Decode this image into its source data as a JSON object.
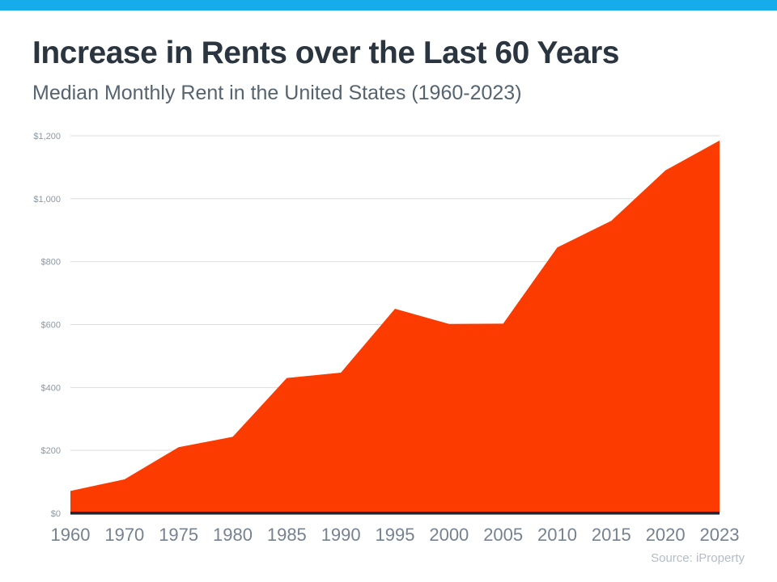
{
  "page": {
    "accent_bar_color": "#16ABEB",
    "background_color": "#FFFFFF"
  },
  "chart_data": {
    "type": "area",
    "title": "Increase in Rents over the Last 60 Years",
    "subtitle": "Median Monthly Rent in the United States (1960-2023)",
    "source": "Source: iProperty",
    "series_name": "Median Monthly Rent (USD)",
    "categories": [
      "1960",
      "1970",
      "1975",
      "1980",
      "1985",
      "1990",
      "1995",
      "2000",
      "2005",
      "2010",
      "2015",
      "2020",
      "2023"
    ],
    "values": [
      71,
      108,
      210,
      243,
      430,
      447,
      650,
      602,
      603,
      845,
      930,
      1090,
      1185
    ],
    "xlabel": "",
    "ylabel": "",
    "ylim": [
      0,
      1200
    ],
    "y_ticks": [
      {
        "value": 0,
        "label": "$0"
      },
      {
        "value": 200,
        "label": "$200"
      },
      {
        "value": 400,
        "label": "$400"
      },
      {
        "value": 600,
        "label": "$600"
      },
      {
        "value": 800,
        "label": "$800"
      },
      {
        "value": 1000,
        "label": "$1,000"
      },
      {
        "value": 1200,
        "label": "$1,200"
      }
    ],
    "grid": true,
    "legend_position": "none",
    "area_color": "#FB3B00",
    "baseline_color": "#21272E",
    "gridline_color": "#DADEE2",
    "y_tick_label_color": "#8C98A4",
    "x_tick_label_color": "#76828F"
  }
}
